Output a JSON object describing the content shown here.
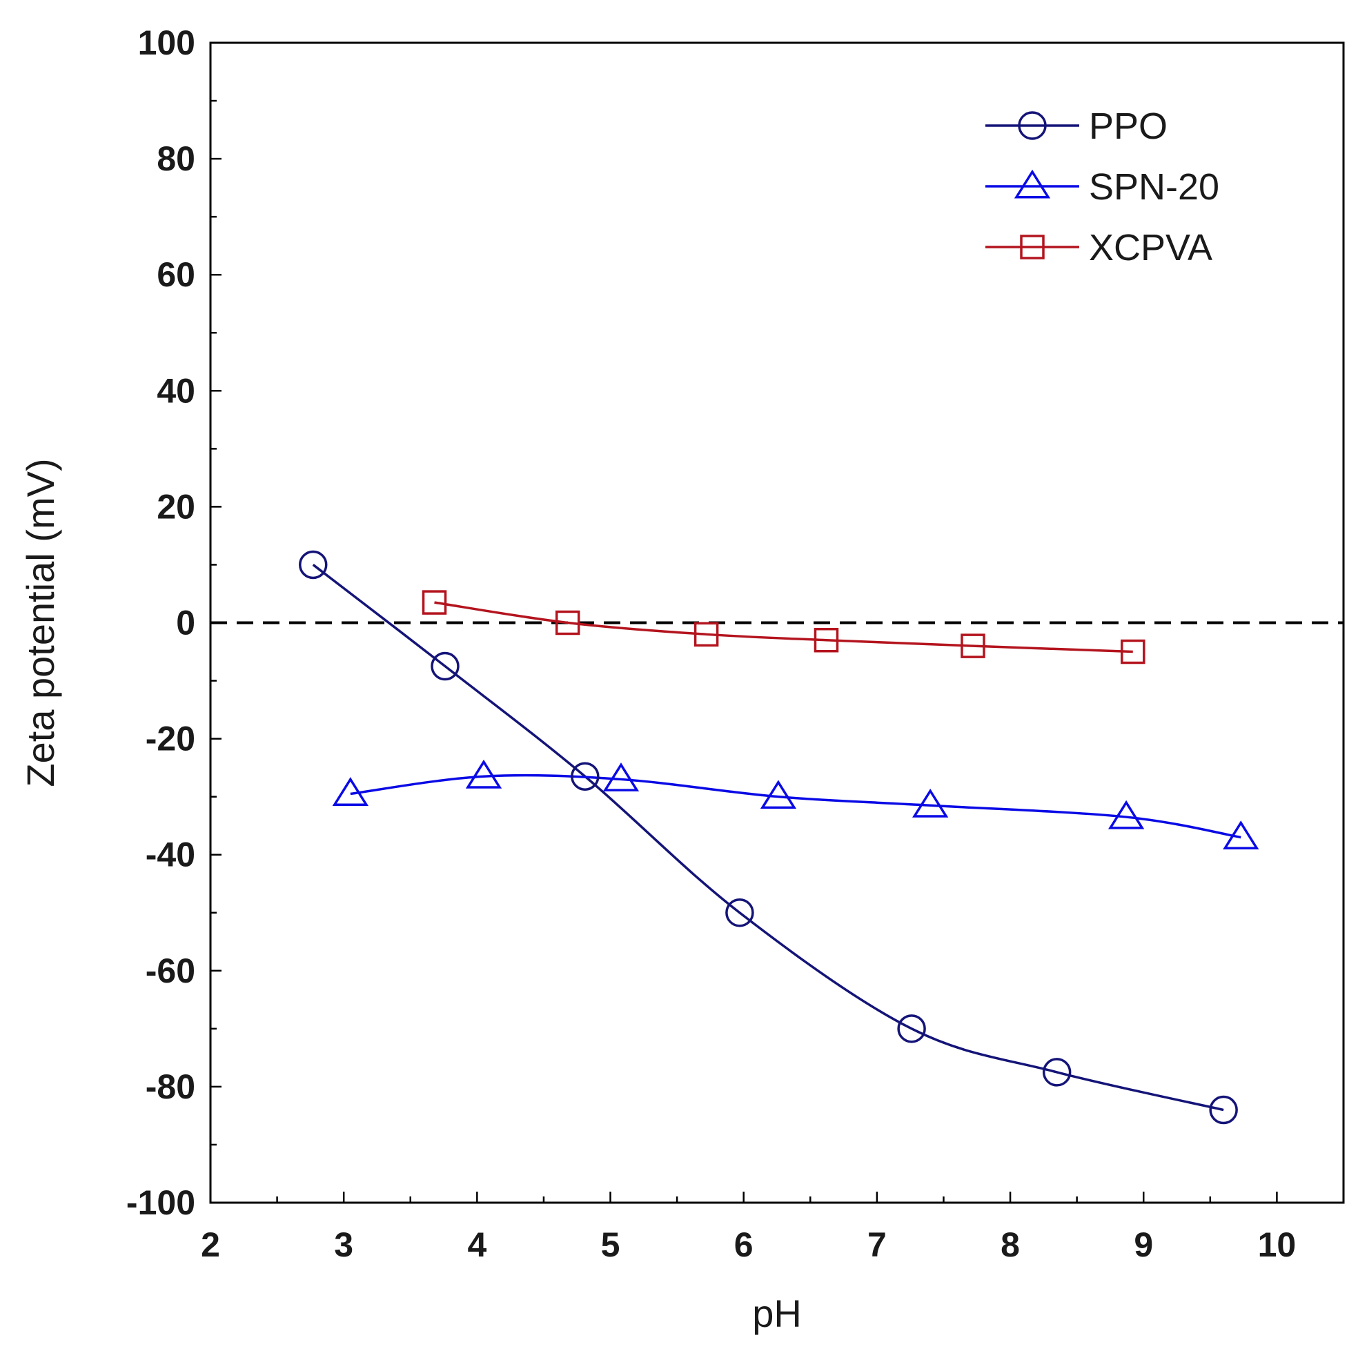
{
  "chart_data": {
    "type": "line",
    "title": "",
    "xlabel": "pH",
    "ylabel": "Zeta potential (mV)",
    "xlim": [
      2,
      10.5
    ],
    "ylim": [
      -100,
      100
    ],
    "xticks": [
      2,
      3,
      4,
      5,
      6,
      7,
      8,
      9,
      10
    ],
    "yticks": [
      100,
      80,
      60,
      40,
      20,
      0,
      -20,
      -40,
      -60,
      -80,
      -100
    ],
    "reference_line": {
      "y": 0,
      "style": "dashed",
      "color": "#000000"
    },
    "legend_position": "top-right",
    "series": [
      {
        "name": "PPO",
        "marker": "circle",
        "color": "#141478",
        "x": [
          2.77,
          3.76,
          4.81,
          5.97,
          7.26,
          8.35,
          9.6
        ],
        "y": [
          10,
          -7.5,
          -26.5,
          -50,
          -70,
          -77.5,
          -84
        ]
      },
      {
        "name": "SPN-20",
        "marker": "triangle",
        "color": "#0a0ae6",
        "x": [
          3.05,
          4.05,
          5.08,
          6.26,
          7.4,
          8.87,
          9.73
        ],
        "y": [
          -29.5,
          -26.5,
          -27,
          -30,
          -31.5,
          -33.5,
          -37
        ]
      },
      {
        "name": "XCPVA",
        "marker": "square",
        "color": "#b4141e",
        "x": [
          3.68,
          4.68,
          5.72,
          6.62,
          7.72,
          8.92
        ],
        "y": [
          3.5,
          0,
          -2,
          -3,
          -4,
          -5
        ]
      }
    ]
  }
}
